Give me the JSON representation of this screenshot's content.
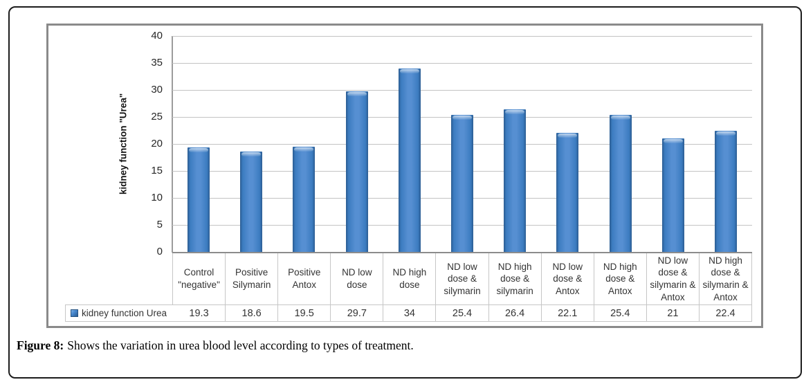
{
  "figure": {
    "caption_label": "Figure 8:",
    "caption_text": "Shows the variation in urea blood level according to types of treatment."
  },
  "chart_data": {
    "type": "bar",
    "title": "",
    "xlabel": "",
    "ylabel": "kidney function \"Urea\"",
    "ylim": [
      0,
      40
    ],
    "ytick_step": 5,
    "grid": true,
    "legend_position": "bottom-left data-table cell",
    "categories": [
      "Control \"negative\"",
      "Positive Silymarin",
      "Positive Antox",
      "ND low dose",
      "ND high dose",
      "ND low dose & silymarin",
      "ND high dose & silymarin",
      "ND low dose & Antox",
      "ND high dose & Antox",
      "ND low dose & silymarin & Antox",
      "ND high dose & silymarin & Antox"
    ],
    "series": [
      {
        "name": "kidney function Urea",
        "values": [
          19.3,
          18.6,
          19.5,
          29.7,
          34,
          25.4,
          26.4,
          22.1,
          25.4,
          21,
          22.4
        ]
      }
    ],
    "colors": {
      "bar_center": "#568fd2",
      "bar_edge": "#2b5c91",
      "gridline": "#c3c3c3",
      "axis": "#9b9b9b",
      "table_border": "#c6c6c6",
      "chart_border": "#8a8a8a",
      "frame_border": "#1c1c1c",
      "text": "#333333"
    }
  }
}
